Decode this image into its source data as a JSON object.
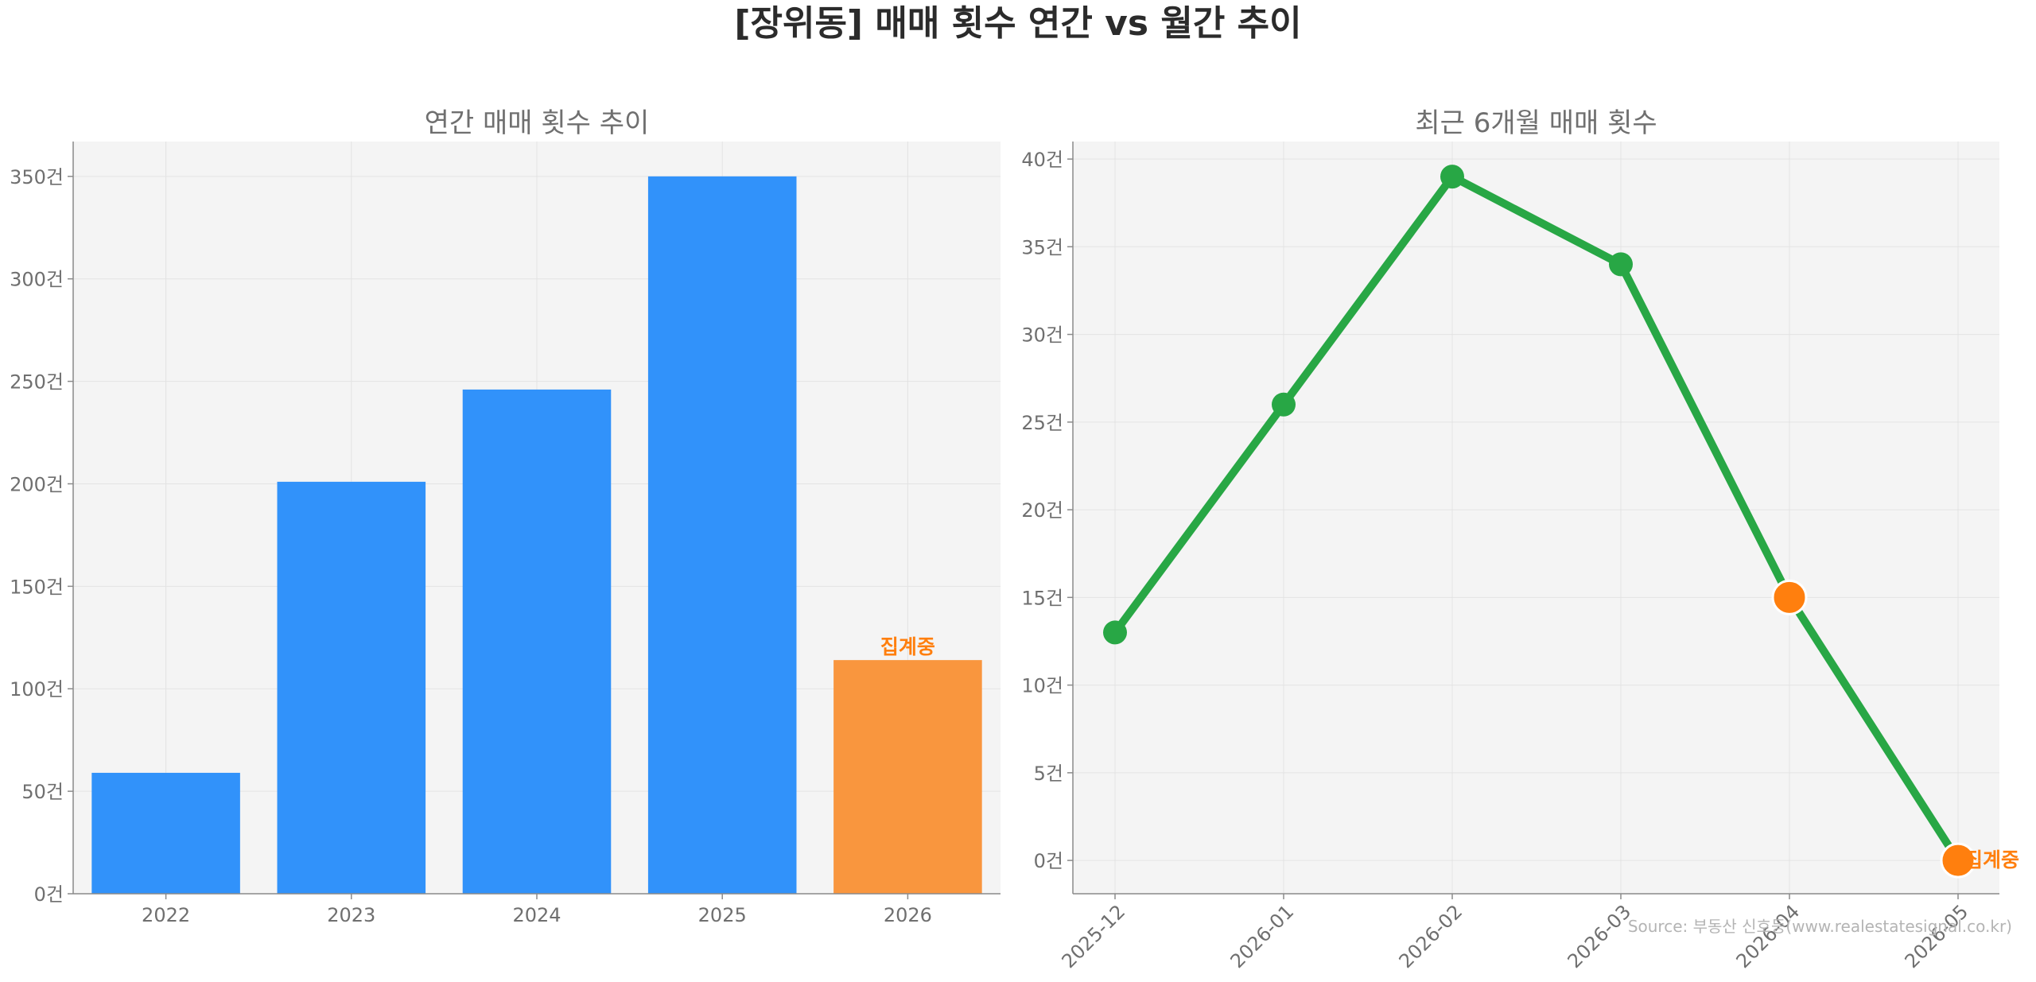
{
  "title": "[장위동] 매매 횟수 연간 vs 월간 추이",
  "source": "Source: 부동산 신호등(www.realestatesignal.co.kr)",
  "colors": {
    "bar_blue": "#3192fa",
    "bar_orange": "#f9963e",
    "line_green": "#28a745",
    "marker_orange": "#ff7f0e",
    "plot_bg": "#f4f4f4",
    "grid": "#e3e3e3"
  },
  "chart_data": [
    {
      "type": "bar",
      "title": "연간 매매 횟수 추이",
      "categories": [
        "2022",
        "2023",
        "2024",
        "2025",
        "2026"
      ],
      "values": [
        59,
        201,
        246,
        350,
        114
      ],
      "highlight": [
        false,
        false,
        false,
        false,
        true
      ],
      "annotations": [
        {
          "category": "2026",
          "text": "집계중"
        }
      ],
      "yticks": [
        0,
        50,
        100,
        150,
        200,
        250,
        300,
        350
      ],
      "ytick_labels": [
        "0건",
        "50건",
        "100건",
        "150건",
        "200건",
        "250건",
        "300건",
        "350건"
      ],
      "ylim": [
        0,
        367
      ],
      "grid": true
    },
    {
      "type": "line",
      "title": "최근 6개월 매매 횟수",
      "x": [
        "2025-12",
        "2026-01",
        "2026-02",
        "2026-03",
        "2026-04",
        "2026-05"
      ],
      "values": [
        13,
        26,
        39,
        34,
        15,
        0
      ],
      "highlight": [
        false,
        false,
        false,
        false,
        true,
        true
      ],
      "annotations": [
        {
          "x": "2026-05",
          "text": "집계중"
        }
      ],
      "yticks": [
        0,
        5,
        10,
        15,
        20,
        25,
        30,
        35,
        40
      ],
      "ytick_labels": [
        "0건",
        "5건",
        "10건",
        "15건",
        "20건",
        "25건",
        "30건",
        "35건",
        "40건"
      ],
      "ylim": [
        -1.9,
        41
      ],
      "grid": true
    }
  ]
}
